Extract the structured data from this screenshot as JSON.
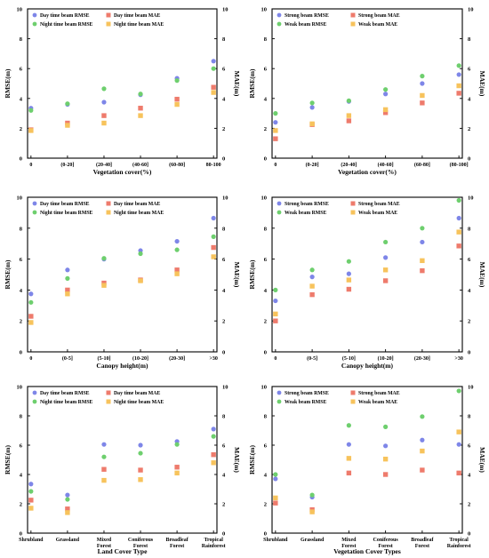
{
  "colors": {
    "day_rmse": "#7e86e8",
    "night_rmse": "#6ecf6e",
    "day_mae": "#ee7b6c",
    "night_mae": "#f7c35c",
    "axis": "#000000"
  },
  "chart_data": [
    {
      "type": "scatter",
      "categories": [
        "0",
        "(0-20]",
        "(20-40]",
        "(40-60]",
        "(60-80]",
        "80-100"
      ],
      "xlabel": "Vegetation cover(%)",
      "ylabel": "RMSE(m)",
      "y2label": "MAE(m)",
      "ylim": [
        0,
        10
      ],
      "y2lim": [
        0,
        10
      ],
      "yticks": [
        "0",
        "2",
        "4",
        "6",
        "8",
        "10"
      ],
      "legend": "top-left",
      "grid": false,
      "series": [
        {
          "name": "Day time beam RMSE",
          "axis": "left",
          "marker": "circle",
          "color": "#7e86e8",
          "values": [
            3.35,
            3.6,
            3.75,
            4.25,
            5.35,
            6.5
          ]
        },
        {
          "name": "Night time beam RMSE",
          "axis": "left",
          "marker": "circle",
          "color": "#6ecf6e",
          "values": [
            3.2,
            3.65,
            4.65,
            4.3,
            5.2,
            6.0
          ]
        },
        {
          "name": "Day time beam MAE",
          "axis": "right",
          "marker": "square",
          "color": "#ee7b6c",
          "values": [
            1.9,
            2.35,
            2.85,
            3.35,
            3.95,
            4.75
          ]
        },
        {
          "name": "Night time beam MAE",
          "axis": "right",
          "marker": "square",
          "color": "#f7c35c",
          "values": [
            1.85,
            2.2,
            2.35,
            2.85,
            3.6,
            4.4
          ]
        }
      ]
    },
    {
      "type": "scatter",
      "categories": [
        "0",
        "(0-20]",
        "(20-40]",
        "(40-60]",
        "(60-80]",
        "(80-100]"
      ],
      "xlabel": "Vegetation cover(%)",
      "ylabel": "RMSE(m)",
      "y2label": "MAE(m)",
      "ylim": [
        0,
        10
      ],
      "y2lim": [
        0,
        10
      ],
      "yticks": [
        "0",
        "2",
        "4",
        "6",
        "8",
        "10"
      ],
      "legend": "top-left",
      "grid": false,
      "series": [
        {
          "name": "Strong beam RMSE",
          "axis": "left",
          "marker": "circle",
          "color": "#7e86e8",
          "values": [
            2.4,
            3.4,
            3.8,
            4.3,
            5.0,
            5.6
          ]
        },
        {
          "name": "Weak beam RMSE",
          "axis": "left",
          "marker": "circle",
          "color": "#6ecf6e",
          "values": [
            3.0,
            3.7,
            3.85,
            4.6,
            5.5,
            6.2
          ]
        },
        {
          "name": "Strong beam MAE",
          "axis": "right",
          "marker": "square",
          "color": "#ee7b6c",
          "values": [
            1.3,
            2.25,
            2.5,
            3.05,
            3.7,
            4.35
          ]
        },
        {
          "name": "Weak beam MAE",
          "axis": "right",
          "marker": "square",
          "color": "#f7c35c",
          "values": [
            1.85,
            2.3,
            2.85,
            3.25,
            4.2,
            4.85
          ]
        }
      ]
    },
    {
      "type": "scatter",
      "categories": [
        "0",
        "(0-5]",
        "(5-10]",
        "(10-20]",
        "(20-30]",
        ">30"
      ],
      "xlabel": "Canopy height(m)",
      "ylabel": "RMSE(m)",
      "y2label": "MAE(m)",
      "ylim": [
        0,
        10
      ],
      "y2lim": [
        0,
        10
      ],
      "yticks": [
        "0",
        "2",
        "4",
        "6",
        "8",
        "10"
      ],
      "legend": "top-left",
      "grid": false,
      "series": [
        {
          "name": "Day time beam RMSE",
          "axis": "left",
          "marker": "circle",
          "color": "#7e86e8",
          "values": [
            3.75,
            5.3,
            6.0,
            6.55,
            7.15,
            8.65
          ]
        },
        {
          "name": "Night time beam RMSE",
          "axis": "left",
          "marker": "circle",
          "color": "#6ecf6e",
          "values": [
            3.2,
            4.75,
            6.05,
            6.35,
            6.6,
            7.45
          ]
        },
        {
          "name": "Day time beam MAE",
          "axis": "right",
          "marker": "square",
          "color": "#ee7b6c",
          "values": [
            2.3,
            4.0,
            4.45,
            4.65,
            5.3,
            6.75
          ]
        },
        {
          "name": "Night time beam MAE",
          "axis": "right",
          "marker": "square",
          "color": "#f7c35c",
          "values": [
            1.9,
            3.75,
            4.3,
            4.6,
            5.05,
            6.15
          ]
        }
      ]
    },
    {
      "type": "scatter",
      "categories": [
        "0",
        "(0-5]",
        "(5-10]",
        "(10-20]",
        "(20-30]",
        ">30"
      ],
      "xlabel": "Canopy height(m)",
      "ylabel": "RMSE(m)",
      "y2label": "MAE(m)",
      "ylim": [
        0,
        10
      ],
      "y2lim": [
        0,
        10
      ],
      "yticks": [
        "0",
        "2",
        "4",
        "6",
        "8",
        "10"
      ],
      "legend": "top-left",
      "grid": false,
      "series": [
        {
          "name": "Strong beam RMSE",
          "axis": "left",
          "marker": "circle",
          "color": "#7e86e8",
          "values": [
            3.3,
            4.85,
            5.05,
            6.1,
            7.1,
            8.65
          ]
        },
        {
          "name": "Weak beam RMSE",
          "axis": "left",
          "marker": "circle",
          "color": "#6ecf6e",
          "values": [
            4.0,
            5.3,
            5.85,
            7.1,
            8.0,
            9.8
          ]
        },
        {
          "name": "Strong beam MAE",
          "axis": "right",
          "marker": "square",
          "color": "#ee7b6c",
          "values": [
            2.0,
            3.7,
            4.05,
            4.6,
            5.25,
            6.85
          ]
        },
        {
          "name": "Weak beam MAE",
          "axis": "right",
          "marker": "square",
          "color": "#f7c35c",
          "values": [
            2.45,
            4.25,
            4.65,
            5.3,
            5.9,
            7.75
          ]
        }
      ]
    },
    {
      "type": "scatter",
      "categories": [
        "Shrubland",
        "Grassland",
        "Mixed\nForest",
        "Coniferous\nForest",
        "Broadleaf\nForest",
        "Tropical\nRainforest"
      ],
      "xlabel": "Land Cover Type",
      "ylabel": "RMSE(m)",
      "y2label": "MAE(m)",
      "ylim": [
        0,
        10
      ],
      "y2lim": [
        0,
        10
      ],
      "yticks": [
        "0",
        "2",
        "4",
        "6",
        "8",
        "10"
      ],
      "legend": "top-left",
      "grid": false,
      "series": [
        {
          "name": "Day time beam RMSE",
          "axis": "left",
          "marker": "circle",
          "color": "#7e86e8",
          "values": [
            3.35,
            2.6,
            6.05,
            6.0,
            6.25,
            7.1
          ]
        },
        {
          "name": "Night time beam RMSE",
          "axis": "left",
          "marker": "circle",
          "color": "#6ecf6e",
          "values": [
            2.85,
            2.3,
            5.2,
            5.45,
            6.05,
            6.6
          ]
        },
        {
          "name": "Day time beam MAE",
          "axis": "right",
          "marker": "square",
          "color": "#ee7b6c",
          "values": [
            2.25,
            1.65,
            4.35,
            4.3,
            4.5,
            5.35
          ]
        },
        {
          "name": "Night time beam MAE",
          "axis": "right",
          "marker": "square",
          "color": "#f7c35c",
          "values": [
            1.7,
            1.4,
            3.6,
            3.65,
            4.1,
            4.8
          ]
        }
      ]
    },
    {
      "type": "scatter",
      "categories": [
        "Shrubland",
        "Grassland",
        "Mixed\nForest",
        "Coniferous\nForest",
        "Broadleaf\nForest",
        "Tropical\nRainforest"
      ],
      "xlabel": "Vegetation Cover Types",
      "ylabel": "RMSE(m)",
      "y2label": "MAE(m)",
      "ylim": [
        0,
        10
      ],
      "y2lim": [
        0,
        10
      ],
      "yticks": [
        "0",
        "2",
        "4",
        "6",
        "8",
        "10"
      ],
      "legend": "top-left",
      "grid": false,
      "series": [
        {
          "name": "Strong beam RMSE",
          "axis": "left",
          "marker": "circle",
          "color": "#7e86e8",
          "values": [
            3.7,
            2.45,
            6.05,
            5.95,
            6.35,
            6.05
          ]
        },
        {
          "name": "Weak beam RMSE",
          "axis": "left",
          "marker": "circle",
          "color": "#6ecf6e",
          "values": [
            4.0,
            2.6,
            7.35,
            7.25,
            7.95,
            9.7
          ]
        },
        {
          "name": "Strong beam MAE",
          "axis": "right",
          "marker": "square",
          "color": "#ee7b6c",
          "values": [
            2.05,
            1.6,
            4.1,
            4.0,
            4.3,
            4.1
          ]
        },
        {
          "name": "Weak beam MAE",
          "axis": "right",
          "marker": "square",
          "color": "#f7c35c",
          "values": [
            2.4,
            1.45,
            5.1,
            5.05,
            5.6,
            6.9
          ]
        }
      ]
    }
  ]
}
